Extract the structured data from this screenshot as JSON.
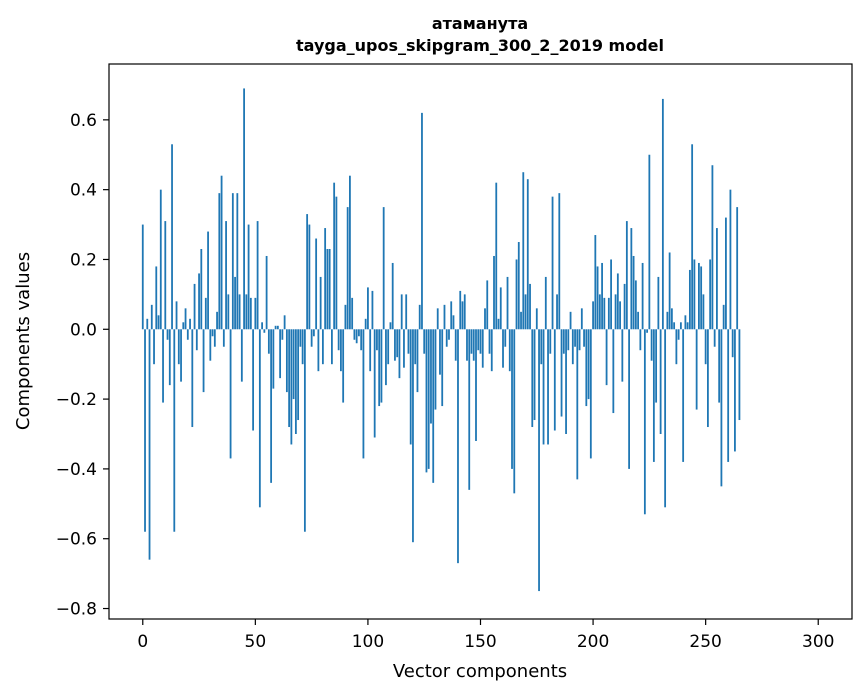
{
  "chart_data": {
    "type": "bar",
    "title": "атаманута\ntayga_upos_skipgram_300_2_2019 model",
    "title_lines": [
      "атаманута",
      "tayga_upos_skipgram_300_2_2019 model"
    ],
    "xlabel": "Vector components",
    "ylabel": "Components values",
    "xlim": [
      -15,
      315
    ],
    "ylim": [
      -0.83,
      0.76
    ],
    "xticks": [
      0,
      50,
      100,
      150,
      200,
      250,
      300
    ],
    "yticks": [
      -0.8,
      -0.6,
      -0.4,
      -0.2,
      0.0,
      0.2,
      0.4,
      0.6
    ],
    "ytick_labels": [
      "−0.8",
      "−0.6",
      "−0.4",
      "−0.2",
      "0.0",
      "0.2",
      "0.4",
      "0.6"
    ],
    "grid": false,
    "color": "#1f77b4",
    "values": [
      0.3,
      -0.58,
      0.03,
      -0.66,
      0.07,
      -0.1,
      0.18,
      0.04,
      0.4,
      -0.21,
      0.31,
      -0.03,
      -0.16,
      0.53,
      -0.58,
      0.08,
      -0.1,
      -0.15,
      0.02,
      0.06,
      -0.03,
      0.03,
      -0.28,
      0.13,
      -0.06,
      0.16,
      0.23,
      -0.18,
      0.09,
      0.28,
      -0.09,
      -0.02,
      -0.05,
      0.05,
      0.39,
      0.44,
      -0.05,
      0.31,
      0.1,
      -0.37,
      0.39,
      0.15,
      0.39,
      0.1,
      -0.15,
      0.69,
      0.1,
      0.3,
      0.09,
      -0.29,
      0.09,
      0.31,
      -0.51,
      0.02,
      -0.01,
      0.21,
      -0.07,
      -0.44,
      -0.17,
      0.01,
      0.01,
      -0.14,
      -0.03,
      0.04,
      -0.18,
      -0.28,
      -0.33,
      -0.2,
      -0.3,
      -0.26,
      -0.05,
      -0.1,
      -0.58,
      0.33,
      0.3,
      -0.05,
      -0.02,
      0.26,
      -0.12,
      0.15,
      -0.1,
      0.29,
      0.23,
      0.23,
      -0.1,
      0.42,
      0.38,
      -0.06,
      -0.12,
      -0.21,
      0.07,
      0.35,
      0.44,
      0.09,
      -0.03,
      -0.04,
      -0.02,
      -0.06,
      -0.37,
      0.03,
      0.12,
      -0.12,
      0.11,
      -0.31,
      -0.06,
      -0.22,
      -0.21,
      0.35,
      -0.16,
      -0.1,
      0.02,
      0.19,
      -0.09,
      -0.08,
      -0.14,
      0.1,
      -0.11,
      0.1,
      -0.07,
      -0.33,
      -0.61,
      -0.1,
      -0.18,
      0.07,
      0.62,
      -0.07,
      -0.41,
      -0.4,
      -0.27,
      -0.44,
      -0.23,
      0.06,
      -0.13,
      -0.22,
      0.07,
      -0.05,
      -0.03,
      0.08,
      0.04,
      -0.09,
      -0.67,
      0.11,
      0.08,
      0.1,
      -0.09,
      -0.46,
      -0.07,
      -0.09,
      -0.32,
      -0.06,
      -0.07,
      -0.11,
      0.06,
      0.14,
      -0.07,
      -0.12,
      0.21,
      0.42,
      0.03,
      0.12,
      -0.11,
      -0.05,
      0.15,
      -0.12,
      -0.4,
      -0.47,
      0.2,
      0.25,
      0.05,
      0.45,
      0.1,
      0.43,
      0.13,
      -0.28,
      -0.26,
      0.06,
      -0.75,
      -0.1,
      -0.33,
      0.15,
      -0.33,
      -0.07,
      0.38,
      -0.29,
      0.1,
      0.39,
      -0.25,
      -0.07,
      -0.3,
      -0.06,
      0.05,
      -0.1,
      -0.05,
      -0.43,
      -0.06,
      0.06,
      -0.05,
      -0.22,
      -0.2,
      -0.37,
      0.08,
      0.27,
      0.18,
      0.1,
      0.19,
      0.09,
      -0.16,
      0.09,
      0.2,
      -0.24,
      0.1,
      0.16,
      0.08,
      -0.15,
      0.13,
      0.31,
      -0.4,
      0.29,
      0.21,
      0.14,
      0.05,
      -0.06,
      0.19,
      -0.53,
      -0.01,
      0.5,
      -0.09,
      -0.38,
      -0.21,
      0.15,
      -0.3,
      0.66,
      -0.51,
      0.05,
      0.22,
      0.06,
      0.02,
      -0.1,
      -0.03,
      0.02,
      -0.38,
      0.04,
      0.02,
      0.17,
      0.53,
      0.2,
      -0.23,
      0.19,
      0.18,
      0.1,
      -0.1,
      -0.28,
      0.2,
      0.47,
      -0.05,
      0.29,
      -0.21,
      -0.45,
      0.07,
      0.32,
      -0.38,
      0.4,
      -0.08,
      -0.35,
      0.35,
      -0.26
    ]
  }
}
